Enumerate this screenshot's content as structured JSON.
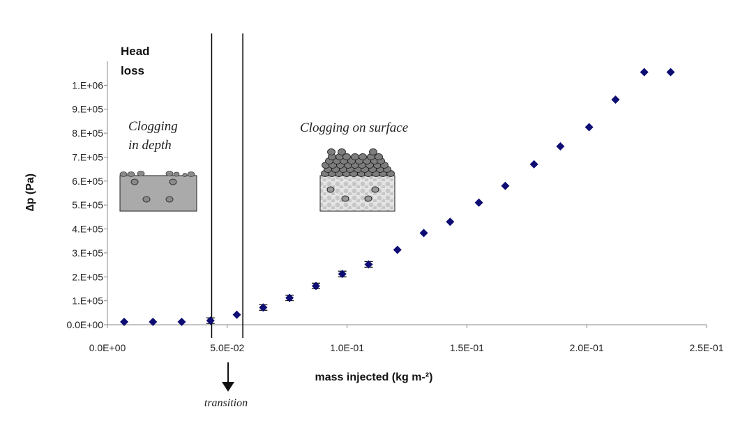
{
  "chart_data": {
    "type": "scatter",
    "xlabel": "mass injected (kg m-²)",
    "ylabel": "∆p (Pa)",
    "xlim": [
      0,
      0.25
    ],
    "ylim": [
      0,
      1100000
    ],
    "x_ticks": [
      0,
      0.05,
      0.1,
      0.15,
      0.2,
      0.25
    ],
    "x_tick_labels": [
      "0.0E+00",
      "5.0E-02",
      "1.0E-01",
      "1.5E-01",
      "2.0E-01",
      "2.5E-01"
    ],
    "y_ticks": [
      0,
      100000,
      200000,
      300000,
      400000,
      500000,
      600000,
      700000,
      800000,
      900000,
      1000000
    ],
    "y_tick_labels": [
      "0.0E+00",
      "1.E+05",
      "2.E+05",
      "3.E+05",
      "4.E+05",
      "5.E+05",
      "6.E+05",
      "7.E+05",
      "8.E+05",
      "9.E+05",
      "1.E+06"
    ],
    "marker_color": "#0d0d73",
    "series": [
      {
        "x": [
          0.007,
          0.019,
          0.031,
          0.043,
          0.054,
          0.065,
          0.076,
          0.087,
          0.098,
          0.109,
          0.121,
          0.132,
          0.143,
          0.155,
          0.166,
          0.178,
          0.189,
          0.201,
          0.212,
          0.224,
          0.235
        ],
        "y": [
          12000,
          12000,
          12000,
          17000,
          42000,
          72000,
          112000,
          162000,
          212000,
          252000,
          313000,
          383000,
          430000,
          510000,
          580000,
          670000,
          745000,
          825000,
          940000,
          1055000,
          1055000
        ]
      }
    ],
    "error_bar_indices": [
      3,
      5,
      6,
      7,
      8,
      9
    ],
    "vertical_lines_x": [
      0.0435,
      0.0565
    ],
    "grid": false,
    "legend": "none"
  },
  "annotations": {
    "head_loss_line1": "Head",
    "head_loss_line2": "loss",
    "clogging_depth_line1": "Clogging",
    "clogging_depth_line2": "in depth",
    "clogging_surface": "Clogging on surface",
    "transition": "transition"
  }
}
